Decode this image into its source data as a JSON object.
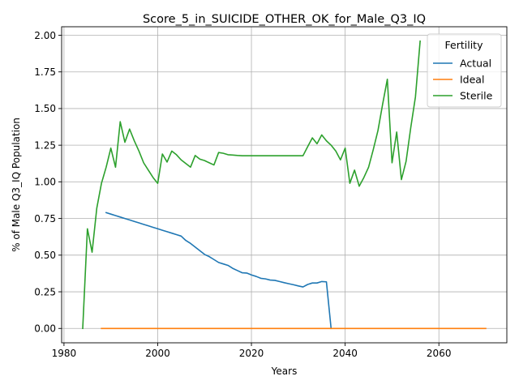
{
  "chart_data": {
    "type": "line",
    "title": "Score_5_in_SUICIDE_OTHER_OK_for_Male_Q3_IQ",
    "xlabel": "Years",
    "ylabel": "% of Male Q3_IQ Population",
    "xlim": [
      1979.5,
      2074.5
    ],
    "ylim": [
      -0.098,
      2.058
    ],
    "x_ticks": [
      1980,
      2000,
      2020,
      2040,
      2060
    ],
    "x_tick_labels": [
      "1980",
      "2000",
      "2020",
      "2040",
      "2060"
    ],
    "y_ticks": [
      0,
      0.25,
      0.5,
      0.75,
      1.0,
      1.25,
      1.5,
      1.75,
      2.0
    ],
    "y_tick_labels": [
      "0.00",
      "0.25",
      "0.50",
      "0.75",
      "1.00",
      "1.25",
      "1.50",
      "1.75",
      "2.00"
    ],
    "grid": true,
    "legend": {
      "title": "Fertility",
      "placement": "top-right"
    },
    "series": [
      {
        "name": "Actual",
        "color": "#1f77b4",
        "points": [
          [
            1989,
            0.79
          ],
          [
            1990,
            0.78
          ],
          [
            1991,
            0.77
          ],
          [
            1992,
            0.76
          ],
          [
            1993,
            0.75
          ],
          [
            1994,
            0.74
          ],
          [
            1995,
            0.73
          ],
          [
            1996,
            0.72
          ],
          [
            1997,
            0.71
          ],
          [
            1998,
            0.7
          ],
          [
            1999,
            0.69
          ],
          [
            2000,
            0.68
          ],
          [
            2001,
            0.67
          ],
          [
            2002,
            0.66
          ],
          [
            2003,
            0.65
          ],
          [
            2004,
            0.64
          ],
          [
            2005,
            0.63
          ],
          [
            2006,
            0.6
          ],
          [
            2007,
            0.58
          ],
          [
            2008,
            0.555
          ],
          [
            2009,
            0.53
          ],
          [
            2010,
            0.505
          ],
          [
            2011,
            0.49
          ],
          [
            2012,
            0.47
          ],
          [
            2013,
            0.45
          ],
          [
            2014,
            0.44
          ],
          [
            2015,
            0.43
          ],
          [
            2016,
            0.41
          ],
          [
            2017,
            0.395
          ],
          [
            2018,
            0.38
          ],
          [
            2019,
            0.378
          ],
          [
            2020,
            0.365
          ],
          [
            2021,
            0.355
          ],
          [
            2022,
            0.342
          ],
          [
            2023,
            0.338
          ],
          [
            2024,
            0.33
          ],
          [
            2025,
            0.328
          ],
          [
            2026,
            0.32
          ],
          [
            2027,
            0.312
          ],
          [
            2028,
            0.305
          ],
          [
            2029,
            0.298
          ],
          [
            2030,
            0.29
          ],
          [
            2031,
            0.283
          ],
          [
            2032,
            0.3
          ],
          [
            2033,
            0.31
          ],
          [
            2034,
            0.31
          ],
          [
            2035,
            0.32
          ],
          [
            2036,
            0.318
          ],
          [
            2037,
            0.0
          ]
        ]
      },
      {
        "name": "Ideal",
        "color": "#ff7f0e",
        "points": [
          [
            1988,
            0.0
          ],
          [
            2070,
            0.0
          ]
        ]
      },
      {
        "name": "Sterile",
        "color": "#2ca02c",
        "points": [
          [
            1984,
            0.0
          ],
          [
            1985,
            0.68
          ],
          [
            1986,
            0.52
          ],
          [
            1987,
            0.82
          ],
          [
            1988,
            0.99
          ],
          [
            1989,
            1.1
          ],
          [
            1990,
            1.23
          ],
          [
            1991,
            1.1
          ],
          [
            1992,
            1.41
          ],
          [
            1993,
            1.27
          ],
          [
            1994,
            1.36
          ],
          [
            1995,
            1.28
          ],
          [
            1996,
            1.21
          ],
          [
            1997,
            1.13
          ],
          [
            1998,
            1.08
          ],
          [
            1999,
            1.03
          ],
          [
            2000,
            0.99
          ],
          [
            2001,
            1.19
          ],
          [
            2002,
            1.135
          ],
          [
            2003,
            1.21
          ],
          [
            2004,
            1.185
          ],
          [
            2005,
            1.15
          ],
          [
            2006,
            1.125
          ],
          [
            2007,
            1.1
          ],
          [
            2008,
            1.18
          ],
          [
            2009,
            1.155
          ],
          [
            2010,
            1.145
          ],
          [
            2011,
            1.13
          ],
          [
            2012,
            1.115
          ],
          [
            2013,
            1.2
          ],
          [
            2014,
            1.195
          ],
          [
            2015,
            1.185
          ],
          [
            2016,
            1.183
          ],
          [
            2017,
            1.18
          ],
          [
            2018,
            1.178
          ],
          [
            2020,
            1.178
          ],
          [
            2025,
            1.178
          ],
          [
            2031,
            1.178
          ],
          [
            2032,
            1.24
          ],
          [
            2033,
            1.3
          ],
          [
            2034,
            1.26
          ],
          [
            2035,
            1.32
          ],
          [
            2036,
            1.28
          ],
          [
            2037,
            1.25
          ],
          [
            2038,
            1.21
          ],
          [
            2039,
            1.15
          ],
          [
            2040,
            1.23
          ],
          [
            2041,
            0.99
          ],
          [
            2042,
            1.08
          ],
          [
            2043,
            0.97
          ],
          [
            2044,
            1.03
          ],
          [
            2045,
            1.1
          ],
          [
            2046,
            1.22
          ],
          [
            2047,
            1.35
          ],
          [
            2048,
            1.53
          ],
          [
            2049,
            1.7
          ],
          [
            2050,
            1.13
          ],
          [
            2051,
            1.34
          ],
          [
            2052,
            1.015
          ],
          [
            2053,
            1.14
          ],
          [
            2054,
            1.37
          ],
          [
            2055,
            1.58
          ],
          [
            2056,
            1.96
          ]
        ]
      }
    ]
  }
}
